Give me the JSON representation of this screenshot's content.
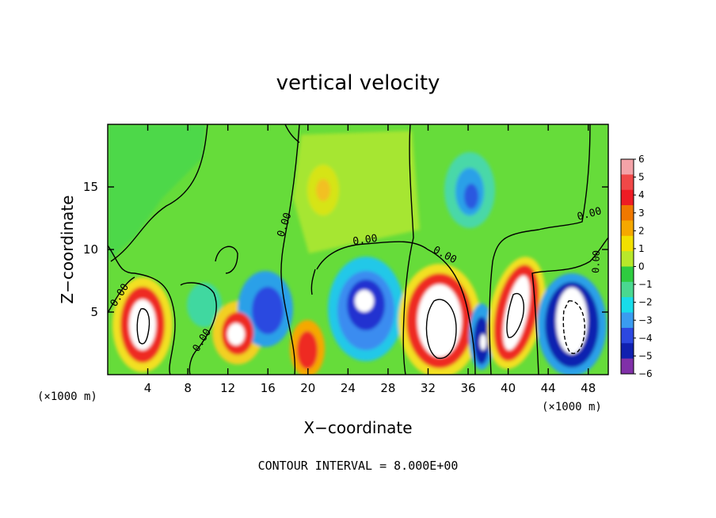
{
  "chart_data": {
    "type": "heatmap",
    "title": "vertical velocity",
    "xlabel": "X−coordinate",
    "ylabel": "Z−coordinate",
    "x_unit": "(×1000 m)",
    "x_unit_right": "(×1000 m)",
    "xlim": [
      0,
      50
    ],
    "ylim": [
      0,
      20
    ],
    "x_ticks": [
      4,
      8,
      12,
      16,
      20,
      24,
      28,
      32,
      36,
      40,
      44,
      48
    ],
    "x_tick_labels": [
      "4",
      "8",
      "12",
      "16",
      "20",
      "24",
      "28",
      "32",
      "36",
      "40",
      "44",
      "48"
    ],
    "y_ticks": [
      5,
      10,
      15
    ],
    "y_tick_labels": [
      "5",
      "10",
      "15"
    ],
    "footer": "CONTOUR INTERVAL = 8.000E+00",
    "colorbar": {
      "labels": [
        "6",
        "5",
        "4",
        "3",
        "2",
        "1",
        "0",
        "−1",
        "−2",
        "−3",
        "−4",
        "−5",
        "−6"
      ],
      "colors": [
        "#f4a3a8",
        "#f04848",
        "#ee1c24",
        "#f07800",
        "#f5a800",
        "#f2e000",
        "#b8e82a",
        "#2ecc40",
        "#4ad890",
        "#18dcea",
        "#3a9cf0",
        "#2c48e0",
        "#1020b0",
        "#8030a8"
      ]
    },
    "contour_labels": [
      "0.00",
      "0.00",
      "0.00",
      "0.00",
      "0.00",
      "0.00",
      "0.00",
      "0.00"
    ],
    "field_features": [
      {
        "x": 4.0,
        "z": 4.5,
        "value": 14,
        "sign": "updraft"
      },
      {
        "x": 13.0,
        "z": 3.2,
        "value": 9,
        "sign": "updraft"
      },
      {
        "x": 10.5,
        "z": 5.5,
        "value": -3,
        "sign": "downdraft"
      },
      {
        "x": 15.5,
        "z": 4.5,
        "value": -4,
        "sign": "downdraft"
      },
      {
        "x": 20.0,
        "z": 2.2,
        "value": 4,
        "sign": "updraft"
      },
      {
        "x": 25.5,
        "z": 5.0,
        "value": -6,
        "sign": "downdraft"
      },
      {
        "x": 21.5,
        "z": 14.5,
        "value": 2.5,
        "sign": "updraft"
      },
      {
        "x": 36.0,
        "z": 14.5,
        "value": -3,
        "sign": "downdraft"
      },
      {
        "x": 33.5,
        "z": 4.5,
        "value": 16,
        "sign": "updraft"
      },
      {
        "x": 37.5,
        "z": 3.5,
        "value": -5,
        "sign": "downdraft"
      },
      {
        "x": 40.5,
        "z": 5.0,
        "value": 14,
        "sign": "updraft"
      },
      {
        "x": 46.5,
        "z": 4.5,
        "value": -14,
        "sign": "downdraft"
      }
    ]
  }
}
